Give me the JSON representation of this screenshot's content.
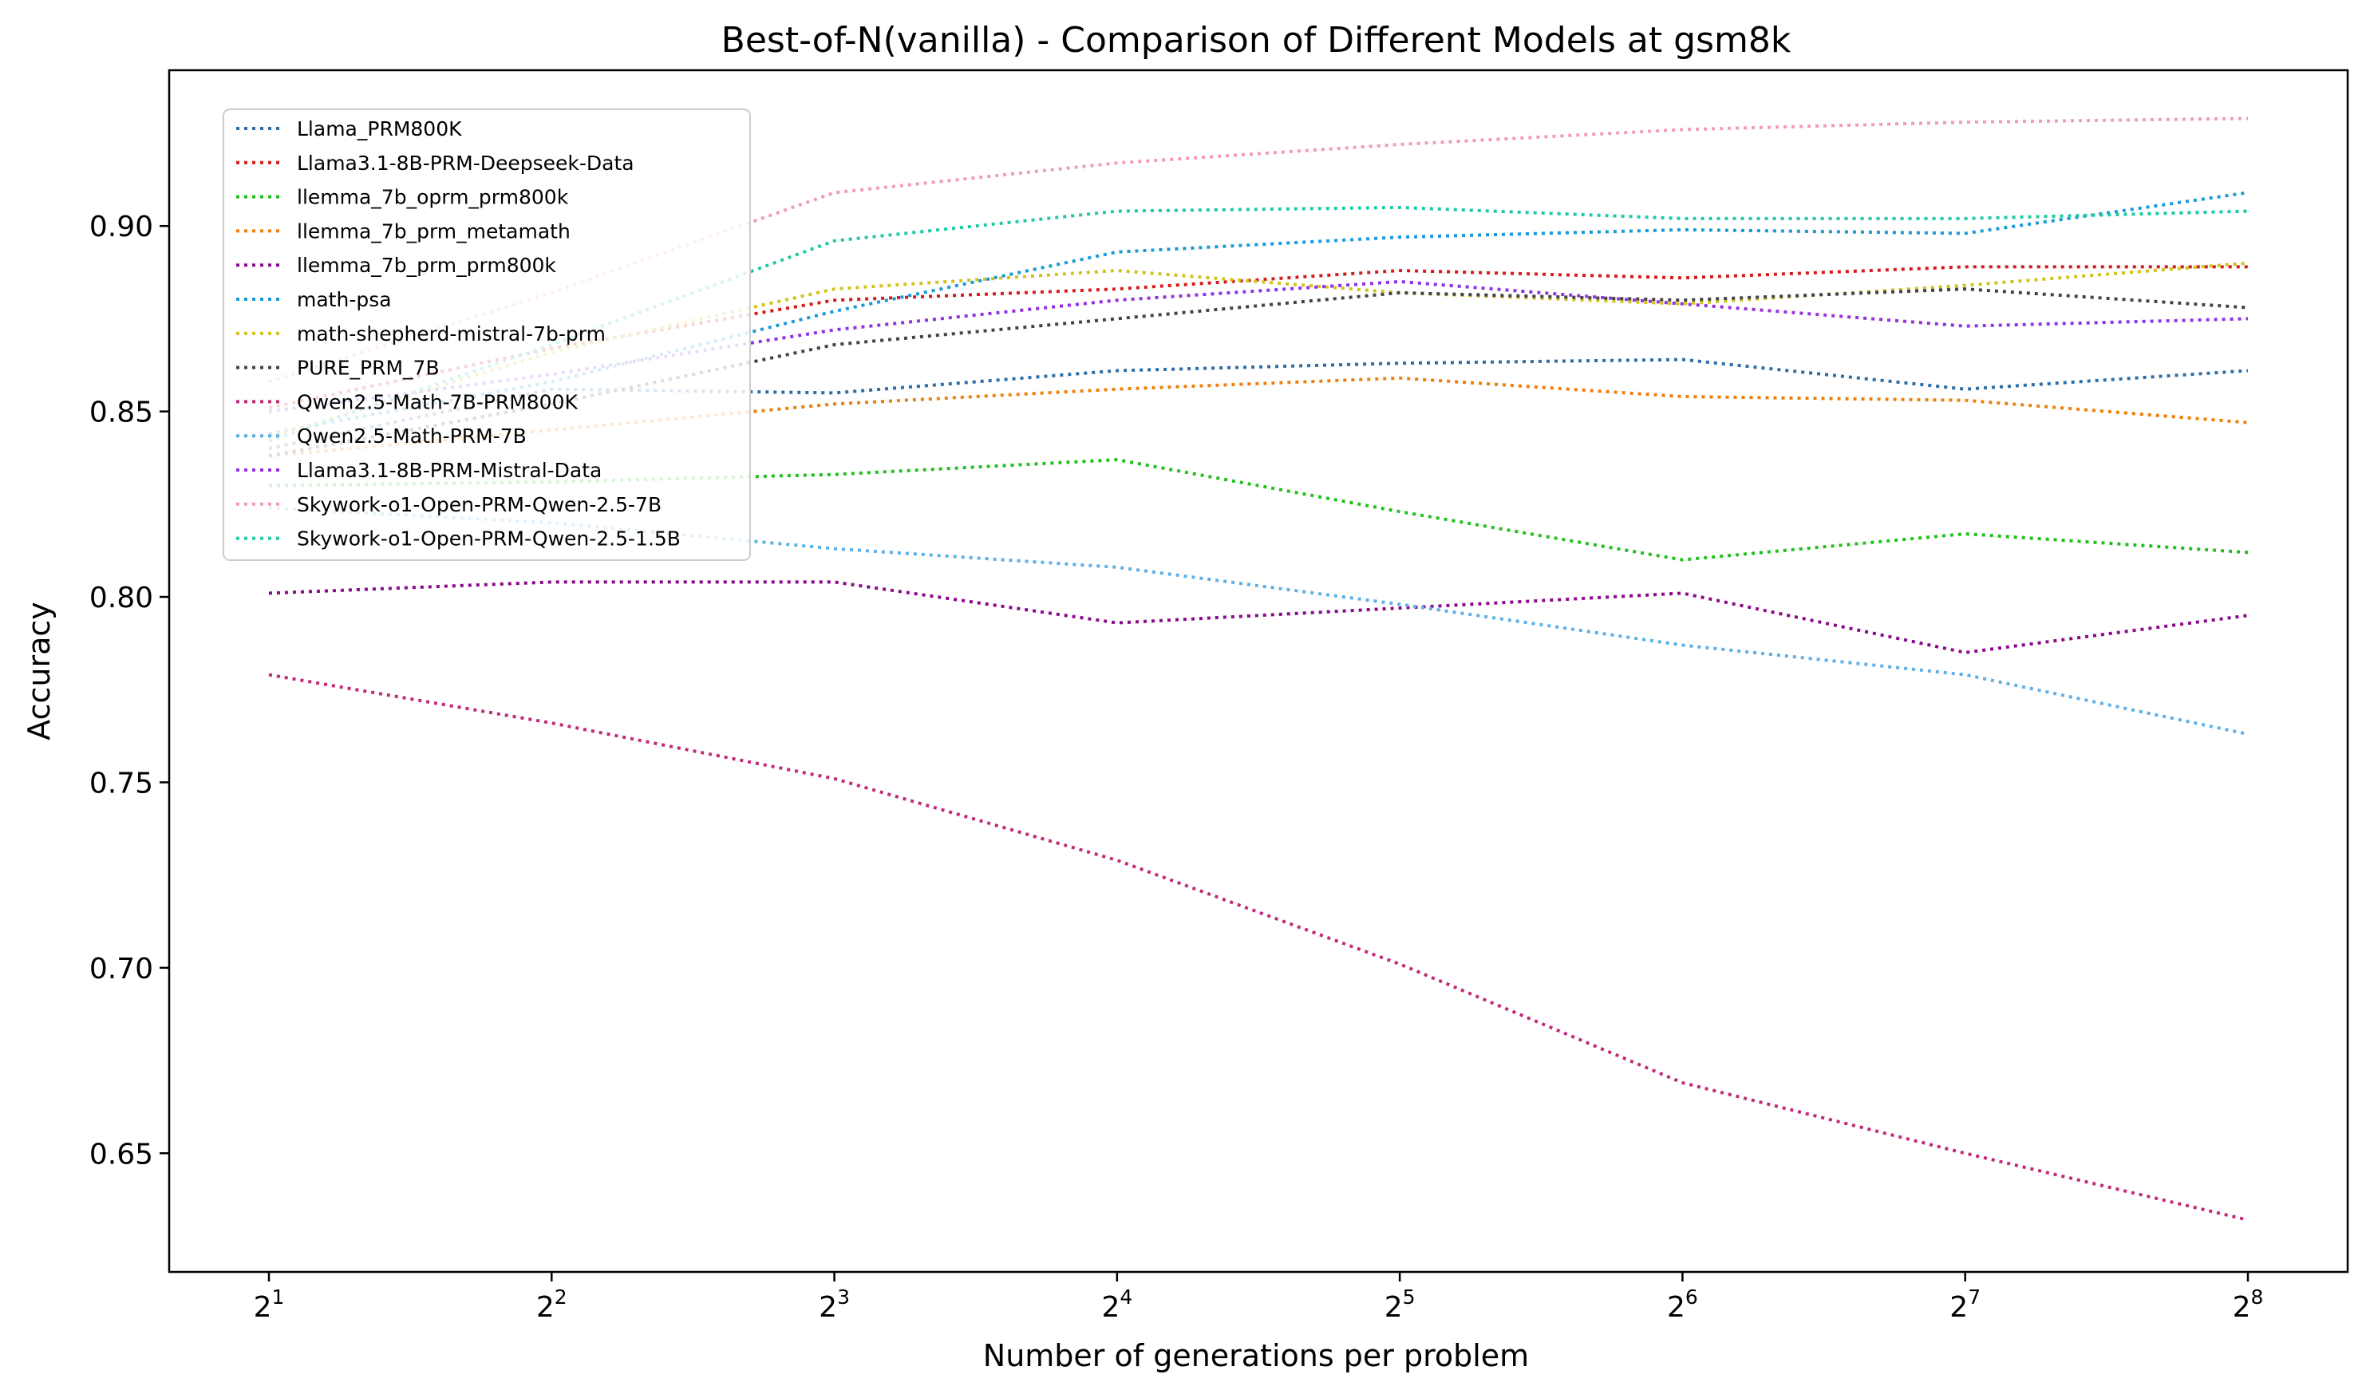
{
  "chart_data": {
    "type": "line",
    "title": "Best-of-N(vanilla) - Comparison of Different Models at gsm8k",
    "xlabel": "Number of generations per problem",
    "ylabel": "Accuracy",
    "x_scale": "log2",
    "x": [
      2,
      4,
      8,
      16,
      32,
      64,
      128,
      256
    ],
    "x_tick_labels": [
      {
        "base": "2",
        "exp": "1"
      },
      {
        "base": "2",
        "exp": "2"
      },
      {
        "base": "2",
        "exp": "3"
      },
      {
        "base": "2",
        "exp": "4"
      },
      {
        "base": "2",
        "exp": "5"
      },
      {
        "base": "2",
        "exp": "6"
      },
      {
        "base": "2",
        "exp": "7"
      },
      {
        "base": "2",
        "exp": "8"
      }
    ],
    "y_ticks": [
      "0.65",
      "0.70",
      "0.75",
      "0.80",
      "0.85",
      "0.90"
    ],
    "ylim": [
      0.618,
      0.942
    ],
    "line_style": "dotted",
    "grid": false,
    "legend_position": "upper-left",
    "series": [
      {
        "name": "Llama_PRM800K",
        "color": "#2e6ea7",
        "values": [
          0.84,
          0.856,
          0.855,
          0.861,
          0.863,
          0.864,
          0.856,
          0.861
        ]
      },
      {
        "name": "Llama3.1-8B-PRM-Deepseek-Data",
        "color": "#d61c1c",
        "values": [
          0.851,
          0.867,
          0.88,
          0.883,
          0.888,
          0.886,
          0.889,
          0.889
        ]
      },
      {
        "name": "llemma_7b_oprm_prm800k",
        "color": "#22c01e",
        "values": [
          0.83,
          0.831,
          0.833,
          0.837,
          0.823,
          0.81,
          0.817,
          0.812
        ]
      },
      {
        "name": "llemma_7b_prm_metamath",
        "color": "#f07f0a",
        "values": [
          0.838,
          0.845,
          0.852,
          0.856,
          0.859,
          0.854,
          0.853,
          0.847
        ]
      },
      {
        "name": "llemma_7b_prm_prm800k",
        "color": "#8b0a8b",
        "values": [
          0.801,
          0.804,
          0.804,
          0.793,
          0.797,
          0.801,
          0.785,
          0.795
        ]
      },
      {
        "name": "math-psa",
        "color": "#1a9ad6",
        "values": [
          0.844,
          0.858,
          0.877,
          0.893,
          0.897,
          0.899,
          0.898,
          0.909
        ]
      },
      {
        "name": "math-shepherd-mistral-7b-prm",
        "color": "#d2c31a",
        "values": [
          0.843,
          0.866,
          0.883,
          0.888,
          0.882,
          0.879,
          0.884,
          0.89
        ]
      },
      {
        "name": "PURE_PRM_7B",
        "color": "#444444",
        "values": [
          0.838,
          0.852,
          0.868,
          0.875,
          0.882,
          0.88,
          0.883,
          0.878
        ]
      },
      {
        "name": "Qwen2.5-Math-7B-PRM800K",
        "color": "#c12a78",
        "values": [
          0.779,
          0.766,
          0.751,
          0.729,
          0.701,
          0.669,
          0.65,
          0.632
        ]
      },
      {
        "name": "Qwen2.5-Math-PRM-7B",
        "color": "#5fb0e6",
        "values": [
          0.824,
          0.82,
          0.813,
          0.808,
          0.798,
          0.787,
          0.779,
          0.763
        ]
      },
      {
        "name": "Llama3.1-8B-PRM-Mistral-Data",
        "color": "#9431e0",
        "values": [
          0.85,
          0.86,
          0.872,
          0.88,
          0.885,
          0.879,
          0.873,
          0.875
        ]
      },
      {
        "name": "Skywork-o1-Open-PRM-Qwen-2.5-7B",
        "color": "#f09cba",
        "values": [
          0.858,
          0.882,
          0.909,
          0.917,
          0.922,
          0.926,
          0.928,
          0.929
        ]
      },
      {
        "name": "Skywork-o1-Open-PRM-Qwen-2.5-1.5B",
        "color": "#20c9a6",
        "values": [
          0.842,
          0.868,
          0.896,
          0.904,
          0.905,
          0.902,
          0.902,
          0.904
        ]
      }
    ]
  }
}
